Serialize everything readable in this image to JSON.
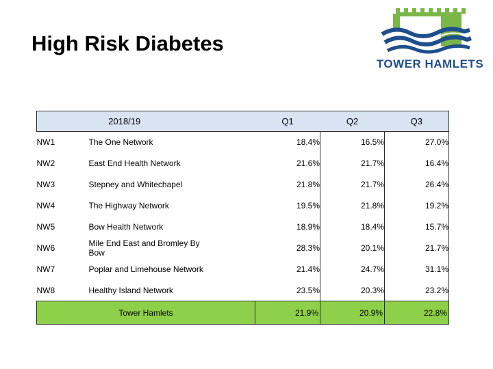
{
  "title": "High Risk Diabetes",
  "logo": {
    "text": "TOWER HAMLETS",
    "colors": {
      "green": "#7ab648",
      "blue": "#1f4e8c"
    }
  },
  "table": {
    "period_header": "2018/19",
    "quarter_headers": [
      "Q1",
      "Q2",
      "Q3"
    ],
    "rows": [
      {
        "code": "NW1",
        "name": "The One Network",
        "q1": "18.4%",
        "q2": "16.5%",
        "q3": "27.0%"
      },
      {
        "code": "NW2",
        "name": "East End Health Network",
        "q1": "21.6%",
        "q2": "21.7%",
        "q3": "16.4%"
      },
      {
        "code": "NW3",
        "name": "Stepney and Whitechapel",
        "q1": "21.8%",
        "q2": "21.7%",
        "q3": "26.4%"
      },
      {
        "code": "NW4",
        "name": "The Highway Network",
        "q1": "19.5%",
        "q2": "21.8%",
        "q3": "19.2%"
      },
      {
        "code": "NW5",
        "name": "Bow Health Network",
        "q1": "18.9%",
        "q2": "18.4%",
        "q3": "15.7%"
      },
      {
        "code": "NW6",
        "name": "Mile End East and Bromley By Bow",
        "q1": "28.3%",
        "q2": "20.1%",
        "q3": "21.7%"
      },
      {
        "code": "NW7",
        "name": "Poplar and Limehouse Network",
        "q1": "21.4%",
        "q2": "24.7%",
        "q3": "31.1%"
      },
      {
        "code": "NW8",
        "name": "Healthy Island Network",
        "q1": "23.5%",
        "q2": "20.3%",
        "q3": "23.2%"
      }
    ],
    "total": {
      "name": "Tower Hamlets",
      "q1": "21.9%",
      "q2": "20.9%",
      "q3": "22.8%"
    },
    "colors": {
      "header_bg": "#d9e4f2",
      "total_bg": "#8ed04a"
    }
  }
}
